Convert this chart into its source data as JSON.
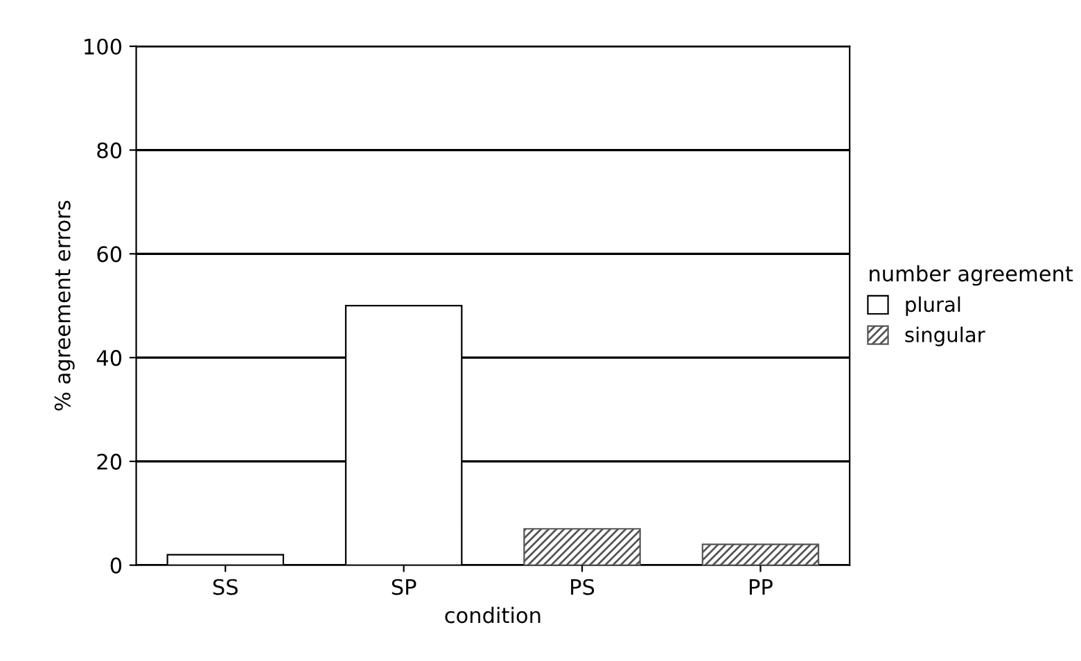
{
  "chart_data": {
    "type": "bar",
    "xlabel": "condition",
    "ylabel": "% agreement errors",
    "legend_title": "number agreement",
    "categories": [
      "SS",
      "SP",
      "PS",
      "PP"
    ],
    "series": [
      {
        "name": "plural",
        "color": "#ffffff",
        "values": [
          2,
          50,
          null,
          null
        ]
      },
      {
        "name": "singular",
        "color": "#555555",
        "values": [
          null,
          null,
          7,
          4
        ]
      }
    ],
    "ylim": [
      0,
      100
    ],
    "yticks": [
      0,
      20,
      40,
      60,
      80,
      100
    ],
    "grid": "y",
    "legend": "right"
  }
}
